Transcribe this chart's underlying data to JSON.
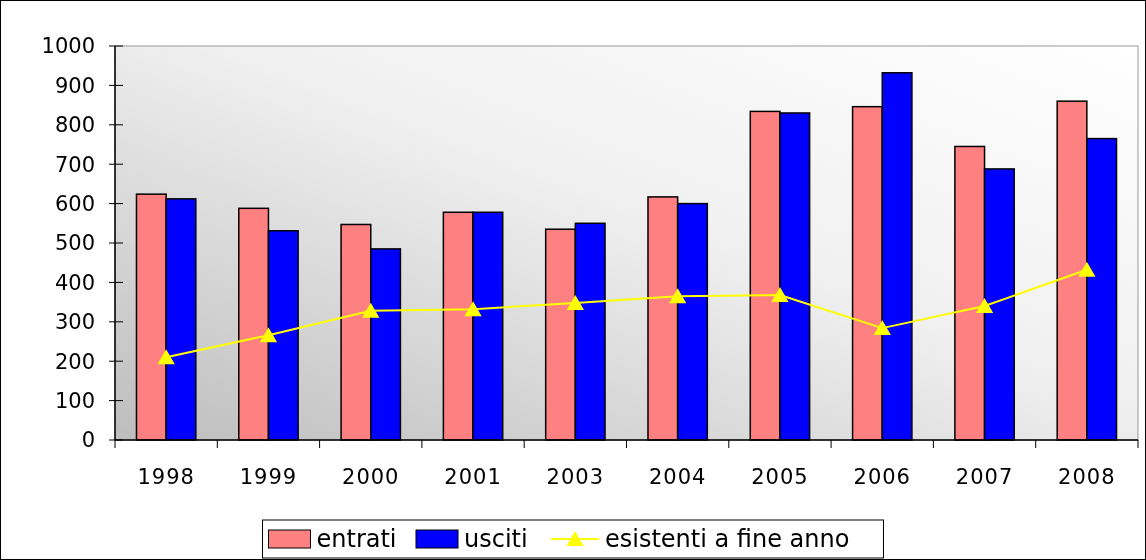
{
  "chart_data": {
    "type": "bar",
    "categories": [
      "1998",
      "1999",
      "2000",
      "2001",
      "2003",
      "2004",
      "2005",
      "2006",
      "2007",
      "2008"
    ],
    "series": [
      {
        "name": "entrati",
        "color": "#ff8080",
        "values": [
          624,
          588,
          547,
          578,
          535,
          617,
          834,
          846,
          745,
          860
        ]
      },
      {
        "name": "usciti",
        "color": "#0000ff",
        "values": [
          612,
          531,
          485,
          578,
          550,
          600,
          830,
          932,
          688,
          765
        ]
      },
      {
        "name": "esistenti a fine anno",
        "type": "line",
        "color": "#ffff00",
        "marker": "triangle",
        "values": [
          210,
          266,
          328,
          332,
          348,
          365,
          368,
          284,
          340,
          432
        ]
      }
    ],
    "ylim": [
      0,
      1000
    ],
    "yticks": [
      0,
      100,
      200,
      300,
      400,
      500,
      600,
      700,
      800,
      900,
      1000
    ],
    "grid": false,
    "legend": "bottom"
  }
}
